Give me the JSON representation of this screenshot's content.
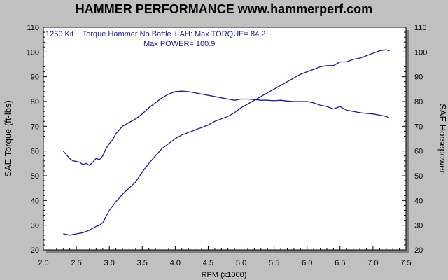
{
  "chart_data": {
    "type": "line",
    "title": "HAMMER PERFORMANCE www.hammerperf.com",
    "annotation_lines": [
      "1250 Kit + Torque Hammer No Baffle + AH: Max TORQUE= 84.2",
      "Max POWER= 100.9"
    ],
    "xlabel": "RPM (x1000)",
    "ylabel": "SAE Torque (ft-lbs)",
    "y2label": "SAE Horsepower",
    "xlim": [
      2.0,
      7.5
    ],
    "ylim": [
      20,
      110
    ],
    "xticks": [
      "2.0",
      "2.5",
      "3.0",
      "3.5",
      "4.0",
      "4.5",
      "5.0",
      "5.5",
      "6.0",
      "6.5",
      "7.0",
      "7.5"
    ],
    "yticks": [
      "20",
      "30",
      "40",
      "50",
      "60",
      "70",
      "80",
      "90",
      "100",
      "110"
    ],
    "grid": false,
    "colors": {
      "background": "#c0c0c0",
      "plot": "#ffffff",
      "line": "#1c1c8c"
    },
    "series": [
      {
        "axis": "left",
        "x": [
          2.3,
          2.35,
          2.4,
          2.45,
          2.5,
          2.55,
          2.6,
          2.65,
          2.7,
          2.75,
          2.8,
          2.85,
          2.9,
          2.95,
          3.0,
          3.05,
          3.1,
          3.2,
          3.3,
          3.4,
          3.5,
          3.6,
          3.7,
          3.8,
          3.9,
          4.0,
          4.1,
          4.2,
          4.3,
          4.4,
          4.5,
          4.6,
          4.7,
          4.8,
          4.9,
          5.0,
          5.1,
          5.2,
          5.3,
          5.4,
          5.5,
          5.6,
          5.7,
          5.8,
          5.9,
          6.0,
          6.1,
          6.2,
          6.3,
          6.4,
          6.5,
          6.6,
          6.7,
          6.8,
          6.9,
          7.0,
          7.1,
          7.2,
          7.25
        ],
        "values": [
          60,
          58.5,
          57,
          56,
          55.8,
          55.5,
          54.5,
          55,
          54.2,
          55.5,
          57,
          56.5,
          58,
          61,
          63,
          64.5,
          67,
          70,
          71.5,
          73,
          75,
          77.5,
          79.5,
          81.5,
          83,
          84,
          84.2,
          84,
          83.5,
          83,
          82.5,
          82,
          81.5,
          81,
          80.5,
          81,
          81,
          80.8,
          80.5,
          80.5,
          80.3,
          80.5,
          80.2,
          80,
          80,
          80,
          79.5,
          78.5,
          78,
          77,
          78,
          76.5,
          76,
          75.5,
          75.2,
          75,
          74.5,
          74,
          73.3
        ]
      },
      {
        "axis": "right",
        "x": [
          2.3,
          2.4,
          2.5,
          2.6,
          2.7,
          2.8,
          2.85,
          2.9,
          3.0,
          3.1,
          3.2,
          3.3,
          3.4,
          3.5,
          3.6,
          3.7,
          3.8,
          3.9,
          4.0,
          4.1,
          4.2,
          4.3,
          4.4,
          4.5,
          4.6,
          4.7,
          4.8,
          4.9,
          5.0,
          5.1,
          5.2,
          5.3,
          5.4,
          5.5,
          5.6,
          5.7,
          5.8,
          5.9,
          6.0,
          6.1,
          6.2,
          6.3,
          6.4,
          6.5,
          6.6,
          6.7,
          6.8,
          6.9,
          7.0,
          7.1,
          7.2,
          7.25
        ],
        "values": [
          26.5,
          26,
          26.5,
          27,
          28,
          29.5,
          30,
          31,
          36,
          39.5,
          42.5,
          45,
          47.5,
          51.5,
          55,
          58,
          61,
          63,
          65,
          66.5,
          67.5,
          68.5,
          69.5,
          70.5,
          72,
          73,
          74,
          75.5,
          77.5,
          79,
          80.5,
          82,
          83.5,
          85,
          86.5,
          88,
          89.5,
          91,
          92,
          93,
          94,
          94.5,
          94.5,
          96,
          96,
          97,
          97.5,
          98.5,
          99.5,
          100.5,
          100.9,
          100.5
        ]
      }
    ]
  }
}
